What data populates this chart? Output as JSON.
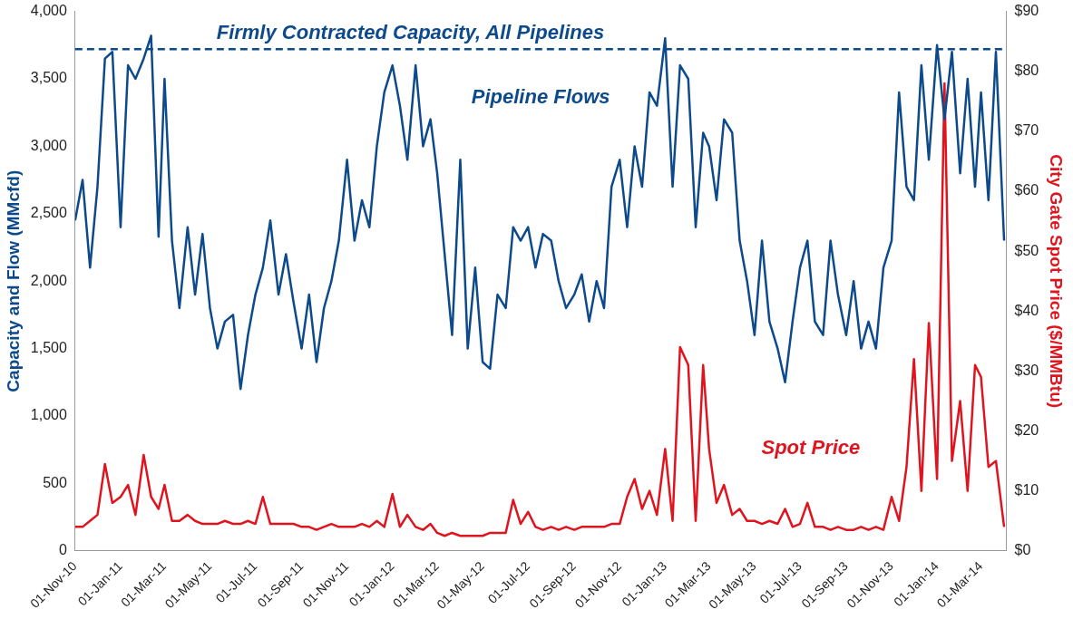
{
  "chart_data": {
    "type": "line",
    "ylabel": "Capacity and Flow (MMcfd)",
    "y2label": "City Gate Spot Price ($/MMBtu)",
    "x": [
      "2010-11-01",
      "2010-11-11",
      "2010-11-21",
      "2010-12-01",
      "2010-12-11",
      "2010-12-21",
      "2011-01-01",
      "2011-01-11",
      "2011-01-21",
      "2011-02-01",
      "2011-02-11",
      "2011-02-21",
      "2011-03-01",
      "2011-03-11",
      "2011-03-21",
      "2011-04-01",
      "2011-04-11",
      "2011-04-21",
      "2011-05-01",
      "2011-05-11",
      "2011-05-21",
      "2011-06-01",
      "2011-06-11",
      "2011-06-21",
      "2011-07-01",
      "2011-07-11",
      "2011-07-21",
      "2011-08-01",
      "2011-08-11",
      "2011-08-21",
      "2011-09-01",
      "2011-09-11",
      "2011-09-21",
      "2011-10-01",
      "2011-10-11",
      "2011-10-21",
      "2011-11-01",
      "2011-11-11",
      "2011-11-21",
      "2011-12-01",
      "2011-12-11",
      "2011-12-21",
      "2012-01-01",
      "2012-01-11",
      "2012-01-21",
      "2012-02-01",
      "2012-02-11",
      "2012-02-21",
      "2012-03-01",
      "2012-03-11",
      "2012-03-21",
      "2012-04-01",
      "2012-04-11",
      "2012-04-21",
      "2012-05-01",
      "2012-05-11",
      "2012-05-21",
      "2012-06-01",
      "2012-06-11",
      "2012-06-21",
      "2012-07-01",
      "2012-07-11",
      "2012-07-21",
      "2012-08-01",
      "2012-08-11",
      "2012-08-21",
      "2012-09-01",
      "2012-09-11",
      "2012-09-21",
      "2012-10-01",
      "2012-10-11",
      "2012-10-21",
      "2012-11-01",
      "2012-11-11",
      "2012-11-21",
      "2012-12-01",
      "2012-12-11",
      "2012-12-21",
      "2013-01-01",
      "2013-01-11",
      "2013-01-21",
      "2013-02-01",
      "2013-02-11",
      "2013-02-21",
      "2013-03-01",
      "2013-03-11",
      "2013-03-21",
      "2013-04-01",
      "2013-04-11",
      "2013-04-21",
      "2013-05-01",
      "2013-05-11",
      "2013-05-21",
      "2013-06-01",
      "2013-06-11",
      "2013-06-21",
      "2013-07-01",
      "2013-07-11",
      "2013-07-21",
      "2013-08-01",
      "2013-08-11",
      "2013-08-21",
      "2013-09-01",
      "2013-09-11",
      "2013-09-21",
      "2013-10-01",
      "2013-10-11",
      "2013-10-21",
      "2013-11-01",
      "2013-11-11",
      "2013-11-21",
      "2013-12-01",
      "2013-12-11",
      "2013-12-21",
      "2014-01-01",
      "2014-01-11",
      "2014-01-21",
      "2014-02-01",
      "2014-02-11",
      "2014-02-21",
      "2014-03-01",
      "2014-03-11",
      "2014-03-21",
      "2014-04-01"
    ],
    "series": [
      {
        "color": "#0d4a8c",
        "values": [
          2450,
          2750,
          2100,
          2700,
          3650,
          3700,
          2400,
          3600,
          3500,
          3650,
          3820,
          2330,
          3500,
          2300,
          1800,
          2400,
          1900,
          2350,
          1800,
          1500,
          1700,
          1750,
          1200,
          1600,
          1900,
          2100,
          2450,
          1900,
          2200,
          1850,
          1500,
          1900,
          1400,
          1800,
          2000,
          2300,
          2900,
          2300,
          2600,
          2400,
          3000,
          3400,
          3600,
          3300,
          2900,
          3600,
          3000,
          3200,
          2800,
          2200,
          1600,
          2900,
          1500,
          2100,
          1400,
          1350,
          1900,
          1800,
          2400,
          2300,
          2400,
          2100,
          2350,
          2300,
          2000,
          1800,
          1900,
          2050,
          1700,
          2000,
          1800,
          2700,
          2900,
          2400,
          3000,
          2700,
          3400,
          3300,
          3800,
          2700,
          3600,
          3500,
          2400,
          3100,
          3000,
          2600,
          3200,
          3100,
          2300,
          2000,
          1600,
          2300,
          1700,
          1500,
          1250,
          1700,
          2100,
          2300,
          1700,
          1600,
          2300,
          1900,
          1600,
          2000,
          1500,
          1700,
          1500,
          2100,
          2300,
          3400,
          2700,
          2600,
          3600,
          2900,
          3750,
          3200,
          3700,
          2800,
          3500,
          2700,
          3400,
          2600,
          3700,
          2300
        ]
      },
      {
        "color": "#e0141e",
        "axis": "y2",
        "values": [
          4,
          4,
          5,
          6,
          14.5,
          8,
          9,
          11,
          6,
          16,
          9,
          7,
          11,
          5,
          5,
          6,
          5,
          4.5,
          4.5,
          4.5,
          5,
          4.5,
          4.5,
          5,
          4.5,
          9,
          4.5,
          4.5,
          4.5,
          4.5,
          4,
          4,
          3.5,
          4,
          4.5,
          4,
          4,
          4,
          4.5,
          4,
          5,
          4,
          9.5,
          4,
          6,
          4,
          3.5,
          4.5,
          3,
          2.5,
          3,
          2.5,
          2.5,
          2.5,
          2.5,
          3,
          3,
          3,
          8.5,
          4.5,
          6.5,
          4,
          3.5,
          4,
          3.5,
          4,
          3.5,
          4,
          4,
          4,
          4,
          4.5,
          4.5,
          9,
          12,
          7,
          10,
          6,
          17,
          5,
          34,
          31,
          5,
          31,
          17,
          8,
          11,
          6,
          7,
          5,
          5,
          4.5,
          5,
          4.5,
          7,
          4,
          4.5,
          8,
          4,
          4,
          3.5,
          4,
          3.5,
          3.5,
          4,
          3.5,
          4,
          3.5,
          9,
          5,
          14,
          32,
          10,
          38,
          12,
          78,
          15,
          25,
          10,
          31,
          29,
          14,
          15,
          4
        ]
      }
    ],
    "xlim": [
      "2010-11-01",
      "2014-04-04"
    ],
    "xticks": [
      {
        "value": "2010-11-01",
        "label": "01-Nov-10"
      },
      {
        "value": "2011-01-01",
        "label": "01-Jan-11"
      },
      {
        "value": "2011-03-01",
        "label": "01-Mar-11"
      },
      {
        "value": "2011-05-01",
        "label": "01-May-11"
      },
      {
        "value": "2011-07-01",
        "label": "01-Jul-11"
      },
      {
        "value": "2011-09-01",
        "label": "01-Sep-11"
      },
      {
        "value": "2011-11-01",
        "label": "01-Nov-11"
      },
      {
        "value": "2012-01-01",
        "label": "01-Jan-12"
      },
      {
        "value": "2012-03-01",
        "label": "01-Mar-12"
      },
      {
        "value": "2012-05-01",
        "label": "01-May-12"
      },
      {
        "value": "2012-07-01",
        "label": "01-Jul-12"
      },
      {
        "value": "2012-09-01",
        "label": "01-Sep-12"
      },
      {
        "value": "2012-11-01",
        "label": "01-Nov-12"
      },
      {
        "value": "2013-01-01",
        "label": "01-Jan-13"
      },
      {
        "value": "2013-03-01",
        "label": "01-Mar-13"
      },
      {
        "value": "2013-05-01",
        "label": "01-May-13"
      },
      {
        "value": "2013-07-01",
        "label": "01-Jul-13"
      },
      {
        "value": "2013-09-01",
        "label": "01-Sep-13"
      },
      {
        "value": "2013-11-01",
        "label": "01-Nov-13"
      },
      {
        "value": "2014-01-01",
        "label": "01-Jan-14"
      },
      {
        "value": "2014-03-01",
        "label": "01-Mar-14"
      }
    ],
    "ylim": [
      0,
      4000
    ],
    "yticks": [
      {
        "value": 0,
        "label": "0"
      },
      {
        "value": 500,
        "label": "500"
      },
      {
        "value": 1000,
        "label": "1,000"
      },
      {
        "value": 1500,
        "label": "1,500"
      },
      {
        "value": 2000,
        "label": "2,000"
      },
      {
        "value": 2500,
        "label": "2,500"
      },
      {
        "value": 3000,
        "label": "3,000"
      },
      {
        "value": 3500,
        "label": "3,500"
      },
      {
        "value": 4000,
        "label": "4,000"
      }
    ],
    "y2lim": [
      0,
      90
    ],
    "y2ticks": [
      {
        "value": 0,
        "label": "$0"
      },
      {
        "value": 10,
        "label": "$10"
      },
      {
        "value": 20,
        "label": "$20"
      },
      {
        "value": 30,
        "label": "$30"
      },
      {
        "value": 40,
        "label": "$40"
      },
      {
        "value": 50,
        "label": "$50"
      },
      {
        "value": 60,
        "label": "$60"
      },
      {
        "value": 70,
        "label": "$70"
      },
      {
        "value": 80,
        "label": "$80"
      },
      {
        "value": 90,
        "label": "$90"
      }
    ],
    "ref_lines": [
      {
        "axis": "y",
        "value": 3720,
        "label": "Firmly Contracted Capacity, All Pipelines",
        "color": "#0d4a8c",
        "line_style": "dashed"
      }
    ],
    "annotations": [
      "Pipeline Flows",
      "Spot Price"
    ],
    "grid": false,
    "legend": false,
    "marker": "none",
    "line_style": "solid"
  }
}
